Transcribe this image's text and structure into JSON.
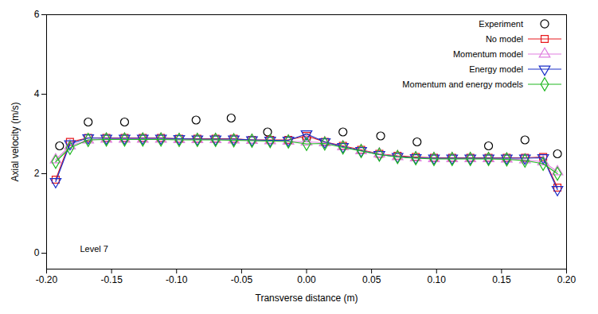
{
  "chart_data": {
    "type": "line",
    "x_label": "Transverse distance (m)",
    "y_label": "Axial velocity (m/s)",
    "annotation": "Level 7",
    "xlim": [
      -0.2,
      0.2
    ],
    "xticks": [
      {
        "value": -0.2,
        "label": "-0.20"
      },
      -0.15,
      {
        "value": -0.1,
        "label": "-0.10"
      },
      -0.05,
      {
        "value": 0,
        "label": "0.00"
      },
      0.05,
      {
        "value": 0.1,
        "label": "0.10"
      },
      0.15,
      {
        "value": 0.2,
        "label": "0.20"
      }
    ],
    "ylim": [
      -0.4,
      6
    ],
    "yticks": [
      0,
      2,
      4,
      6
    ],
    "grid": false,
    "legend": "top-right",
    "x": [
      -0.193,
      -0.182,
      -0.168,
      -0.154,
      -0.14,
      -0.126,
      -0.112,
      -0.098,
      -0.084,
      -0.07,
      -0.056,
      -0.042,
      -0.028,
      -0.014,
      0.0,
      0.014,
      0.028,
      0.042,
      0.056,
      0.07,
      0.084,
      0.098,
      0.112,
      0.126,
      0.14,
      0.154,
      0.168,
      0.182,
      0.193
    ],
    "series": [
      {
        "name": "Experiment",
        "type": "scatter",
        "marker": "circle",
        "color": "#000000",
        "x": [
          -0.19,
          -0.168,
          -0.14,
          -0.085,
          -0.058,
          -0.03,
          0.0,
          0.028,
          0.057,
          0.085,
          0.14,
          0.168,
          0.193
        ],
        "values": [
          2.7,
          3.3,
          3.3,
          3.35,
          3.4,
          3.05,
          2.9,
          3.05,
          2.95,
          2.8,
          2.7,
          2.85,
          2.5
        ]
      },
      {
        "name": "No model",
        "type": "line",
        "marker": "square",
        "color": "#e8191c",
        "values": [
          1.85,
          2.8,
          2.9,
          2.9,
          2.9,
          2.9,
          2.9,
          2.88,
          2.88,
          2.88,
          2.88,
          2.85,
          2.85,
          2.85,
          2.95,
          2.8,
          2.7,
          2.6,
          2.5,
          2.45,
          2.42,
          2.4,
          2.4,
          2.4,
          2.4,
          2.4,
          2.4,
          2.42,
          1.65
        ]
      },
      {
        "name": "Momentum model",
        "type": "line",
        "marker": "triangle",
        "color": "#e07fe0",
        "values": [
          2.35,
          2.7,
          2.85,
          2.87,
          2.87,
          2.87,
          2.87,
          2.86,
          2.86,
          2.86,
          2.85,
          2.84,
          2.83,
          2.82,
          2.8,
          2.78,
          2.68,
          2.58,
          2.5,
          2.43,
          2.4,
          2.38,
          2.38,
          2.38,
          2.38,
          2.37,
          2.35,
          2.3,
          2.05
        ]
      },
      {
        "name": "Energy model",
        "type": "line",
        "marker": "triangle-down",
        "color": "#1a2fc8",
        "values": [
          1.8,
          2.75,
          2.9,
          2.89,
          2.89,
          2.89,
          2.89,
          2.88,
          2.87,
          2.87,
          2.87,
          2.85,
          2.84,
          2.84,
          3.0,
          2.8,
          2.68,
          2.58,
          2.48,
          2.43,
          2.4,
          2.39,
          2.39,
          2.39,
          2.39,
          2.39,
          2.39,
          2.4,
          1.6
        ]
      },
      {
        "name": "Momentum and energy models",
        "type": "line",
        "marker": "diamond",
        "color": "#21b821",
        "values": [
          2.3,
          2.65,
          2.85,
          2.86,
          2.86,
          2.86,
          2.86,
          2.85,
          2.85,
          2.85,
          2.84,
          2.83,
          2.82,
          2.81,
          2.75,
          2.76,
          2.66,
          2.57,
          2.48,
          2.42,
          2.39,
          2.37,
          2.37,
          2.37,
          2.37,
          2.36,
          2.33,
          2.25,
          2.0
        ]
      }
    ]
  }
}
